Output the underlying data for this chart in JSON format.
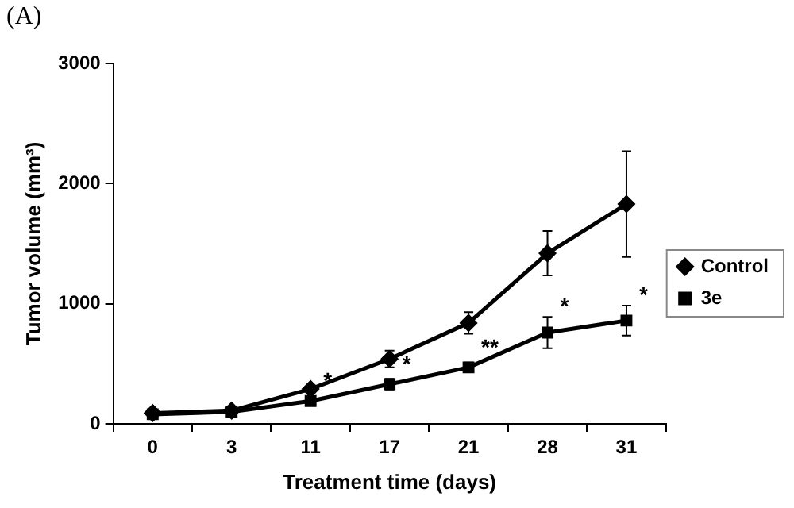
{
  "chart_data": {
    "type": "line",
    "xlabel": "Treatment time (days)",
    "ylabel": "Tumor volume (mm³)",
    "categories": [
      "0",
      "3",
      "11",
      "17",
      "21",
      "28",
      "31"
    ],
    "ylim": [
      0,
      3000
    ],
    "yticks": [
      0,
      1000,
      2000,
      3000
    ],
    "grid": false,
    "legend": "right",
    "line_style": "solid",
    "series": [
      {
        "name": "Control",
        "color": "#000000",
        "marker": "diamond",
        "values": [
          90,
          110,
          290,
          540,
          840,
          1420,
          1830
        ],
        "errors": [
          null,
          null,
          30,
          70,
          90,
          185,
          440
        ]
      },
      {
        "name": "3e",
        "color": "#000000",
        "marker": "square",
        "values": [
          80,
          100,
          190,
          330,
          470,
          760,
          860
        ],
        "errors": [
          null,
          null,
          null,
          45,
          40,
          130,
          125
        ]
      }
    ],
    "annotations": [
      "(A)",
      {
        "text": "*",
        "x": "11",
        "y": 190
      },
      {
        "text": "*",
        "x": "17",
        "y": 330
      },
      {
        "text": "**",
        "x": "21",
        "y": 470
      },
      {
        "text": "*",
        "x": "28",
        "y": 760
      },
      {
        "text": "*",
        "x": "31",
        "y": 860
      }
    ]
  }
}
